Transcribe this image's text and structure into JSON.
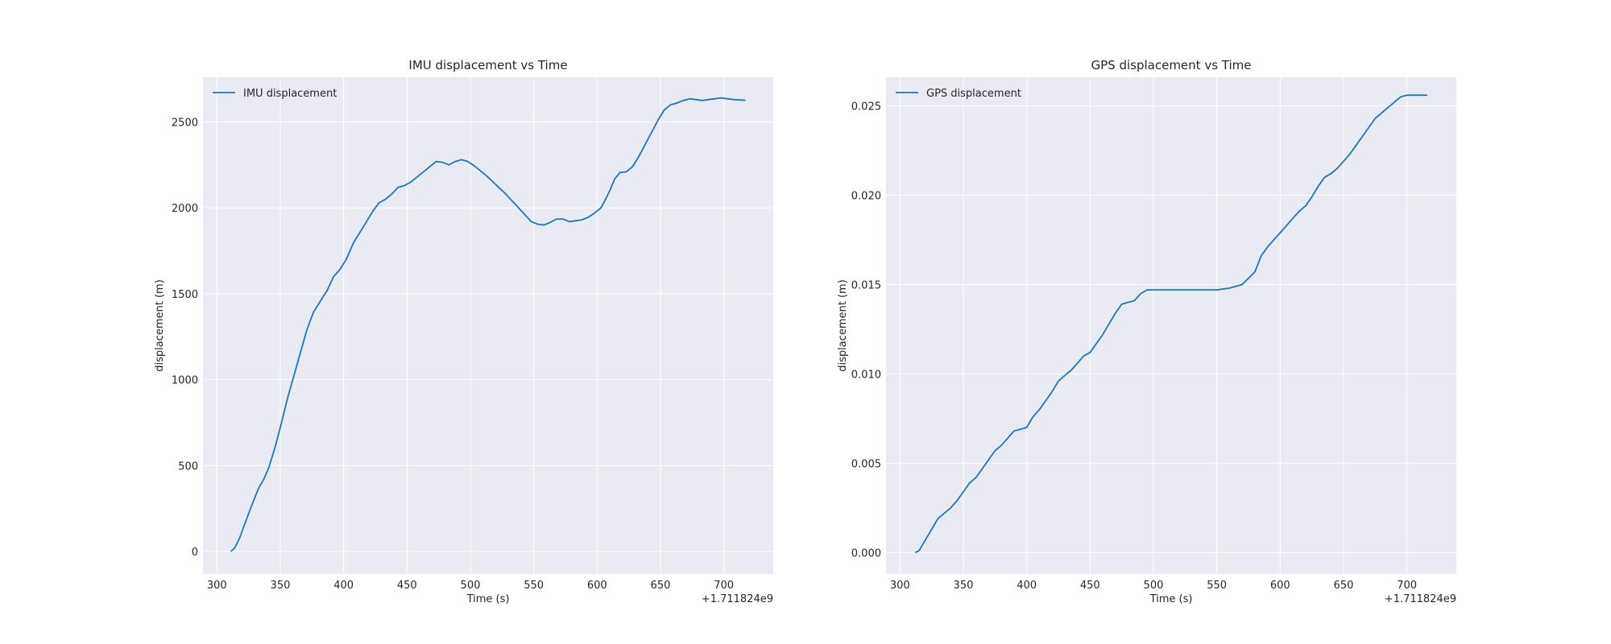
{
  "chart_data": [
    {
      "type": "line",
      "title": "IMU displacement vs Time",
      "xlabel": "Time (s)",
      "ylabel": "displacement (m)",
      "x_offset_label": "+1.711824e9",
      "xlim": [
        289,
        739
      ],
      "ylim": [
        -131,
        2760
      ],
      "xticks": [
        300,
        350,
        400,
        450,
        500,
        550,
        600,
        650,
        700
      ],
      "yticks": [
        0,
        500,
        1000,
        1500,
        2000,
        2500
      ],
      "ytick_labels": [
        "0",
        "500",
        "1000",
        "1500",
        "2000",
        "2500"
      ],
      "grid": true,
      "legend_placement": "top-left",
      "series": [
        {
          "name": "IMU displacement",
          "color": "#1f77b4",
          "x": [
            311,
            314,
            318,
            322,
            327,
            333,
            337,
            341,
            346,
            351,
            356,
            361,
            366,
            371,
            376,
            381,
            387,
            392,
            397,
            402,
            408,
            413,
            418,
            423,
            428,
            433,
            438,
            443,
            448,
            453,
            458,
            463,
            468,
            473,
            478,
            483,
            488,
            493,
            498,
            503,
            508,
            513,
            518,
            523,
            528,
            533,
            538,
            543,
            548,
            553,
            558,
            563,
            568,
            573,
            578,
            583,
            588,
            593,
            598,
            603,
            606,
            610,
            614,
            618,
            623,
            628,
            633,
            638,
            643,
            648,
            653,
            658,
            663,
            668,
            673,
            678,
            683,
            688,
            693,
            698,
            703,
            708,
            713,
            717
          ],
          "y": [
            0,
            20,
            80,
            160,
            260,
            370,
            420,
            490,
            610,
            750,
            900,
            1030,
            1160,
            1290,
            1390,
            1450,
            1520,
            1600,
            1640,
            1700,
            1800,
            1860,
            1920,
            1980,
            2030,
            2050,
            2080,
            2120,
            2130,
            2150,
            2180,
            2210,
            2240,
            2270,
            2265,
            2250,
            2270,
            2280,
            2270,
            2245,
            2215,
            2185,
            2150,
            2115,
            2080,
            2040,
            2000,
            1960,
            1920,
            1905,
            1900,
            1915,
            1935,
            1935,
            1920,
            1925,
            1930,
            1945,
            1970,
            2000,
            2040,
            2100,
            2170,
            2205,
            2210,
            2240,
            2300,
            2370,
            2440,
            2510,
            2570,
            2600,
            2610,
            2625,
            2635,
            2630,
            2625,
            2630,
            2635,
            2640,
            2635,
            2630,
            2628,
            2626
          ]
        }
      ]
    },
    {
      "type": "line",
      "title": "GPS displacement vs Time",
      "xlabel": "Time (s)",
      "ylabel": "displacement (m)",
      "x_offset_label": "+1.711824e9",
      "xlim": [
        289,
        739
      ],
      "ylim": [
        -0.0012,
        0.0266
      ],
      "xticks": [
        300,
        350,
        400,
        450,
        500,
        550,
        600,
        650,
        700
      ],
      "yticks": [
        0,
        0.005,
        0.01,
        0.015,
        0.02,
        0.025
      ],
      "ytick_labels": [
        "0.000",
        "0.005",
        "0.010",
        "0.015",
        "0.020",
        "0.025"
      ],
      "grid": true,
      "legend_placement": "top-left",
      "series": [
        {
          "name": "GPS displacement",
          "color": "#1f77b4",
          "x": [
            312,
            315,
            320,
            325,
            330,
            335,
            340,
            345,
            350,
            355,
            360,
            365,
            370,
            375,
            380,
            385,
            390,
            395,
            400,
            405,
            410,
            415,
            420,
            425,
            430,
            435,
            440,
            445,
            450,
            455,
            460,
            465,
            470,
            475,
            480,
            485,
            490,
            495,
            500,
            505,
            510,
            515,
            520,
            530,
            540,
            550,
            560,
            570,
            580,
            585,
            590,
            595,
            600,
            605,
            610,
            615,
            620,
            625,
            630,
            635,
            640,
            645,
            650,
            655,
            660,
            665,
            670,
            675,
            680,
            685,
            690,
            695,
            700,
            705,
            710,
            716
          ],
          "y": [
            0,
            0.0001,
            0.0007,
            0.0013,
            0.0019,
            0.0022,
            0.0025,
            0.0029,
            0.0034,
            0.0039,
            0.0042,
            0.0047,
            0.0052,
            0.0057,
            0.006,
            0.0064,
            0.0068,
            0.0069,
            0.007,
            0.0076,
            0.008,
            0.0085,
            0.009,
            0.0096,
            0.0099,
            0.0102,
            0.0106,
            0.011,
            0.0112,
            0.0117,
            0.0122,
            0.0128,
            0.0134,
            0.0139,
            0.014,
            0.0141,
            0.0145,
            0.0147,
            0.0147,
            0.0147,
            0.0147,
            0.0147,
            0.0147,
            0.0147,
            0.0147,
            0.0147,
            0.0148,
            0.015,
            0.0157,
            0.0166,
            0.0171,
            0.0175,
            0.0179,
            0.0183,
            0.0187,
            0.0191,
            0.0194,
            0.0199,
            0.0205,
            0.021,
            0.0212,
            0.0215,
            0.0219,
            0.0223,
            0.0228,
            0.0233,
            0.0238,
            0.0243,
            0.0246,
            0.0249,
            0.0252,
            0.0255,
            0.0256,
            0.0256,
            0.0256,
            0.0256
          ]
        }
      ]
    }
  ]
}
